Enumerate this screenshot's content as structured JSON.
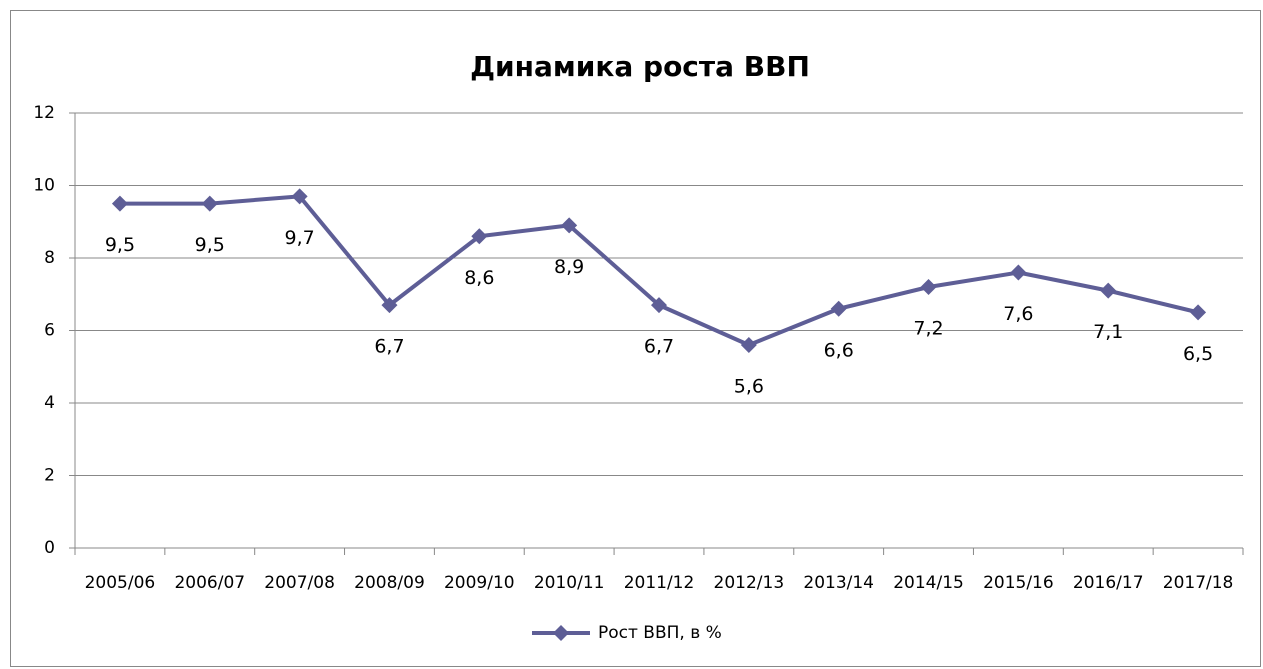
{
  "chart_data": {
    "type": "line",
    "title": "Динамика роста ВВП",
    "categories": [
      "2005/06",
      "2006/07",
      "2007/08",
      "2008/09",
      "2009/10",
      "2010/11",
      "2011/12",
      "2012/13",
      "2013/14",
      "2014/15",
      "2015/16",
      "2016/17",
      "2017/18"
    ],
    "series": [
      {
        "name": "Рост ВВП, в %",
        "color": "#5e5e96",
        "values": [
          9.5,
          9.5,
          9.7,
          6.7,
          8.6,
          8.9,
          6.7,
          5.6,
          6.6,
          7.2,
          7.6,
          7.1,
          6.5
        ],
        "value_labels": [
          "9,5",
          "9,5",
          "9,7",
          "6,7",
          "8,6",
          "8,9",
          "6,7",
          "5,6",
          "6,6",
          "7,2",
          "7,6",
          "7,1",
          "6,5"
        ]
      }
    ],
    "ylim": [
      0,
      12
    ],
    "yticks": [
      0,
      2,
      4,
      6,
      8,
      10,
      12
    ],
    "grid": true,
    "legend": "bottom"
  }
}
